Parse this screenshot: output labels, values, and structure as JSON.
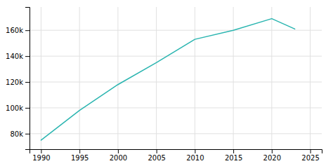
{
  "chart_data": {
    "type": "line",
    "x": [
      1990,
      1995,
      2000,
      2005,
      2010,
      2015,
      2020,
      2023
    ],
    "values": [
      75000,
      98000,
      118000,
      135000,
      153000,
      160000,
      169000,
      161000
    ],
    "color": "#2ab5b0",
    "xlim": [
      1988.5,
      2026.5
    ],
    "ylim": [
      68000,
      178000
    ],
    "xticks": [
      1990,
      1995,
      2000,
      2005,
      2010,
      2015,
      2020,
      2025
    ],
    "yticks": [
      {
        "value": 80000,
        "label": "80k"
      },
      {
        "value": 100000,
        "label": "100k"
      },
      {
        "value": 120000,
        "label": "120k"
      },
      {
        "value": 140000,
        "label": "140k"
      },
      {
        "value": 160000,
        "label": "160k"
      }
    ],
    "grid": true
  }
}
